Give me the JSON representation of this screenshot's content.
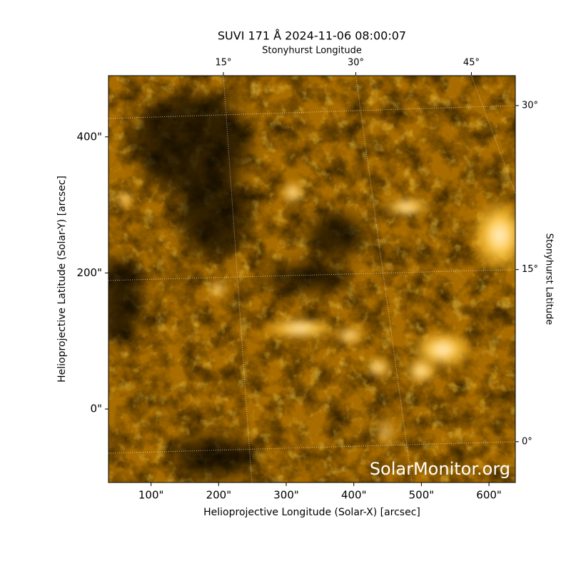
{
  "chart_data": {
    "type": "image",
    "title": "SUVI 171 Å 2024-11-06 08:00:07",
    "xlabel": "Helioprojective Longitude (Solar-X) [arcsec]",
    "ylabel": "Helioprojective Latitude (Solar-Y) [arcsec]",
    "x2label": "Stonyhurst Longitude",
    "y2label": "Stonyhurst Latitude",
    "watermark": "SolarMonitor.org",
    "xlim": [
      37,
      639
    ],
    "ylim": [
      -108,
      490
    ],
    "xticks": [
      {
        "value": 100,
        "label": "100\""
      },
      {
        "value": 200,
        "label": "200\""
      },
      {
        "value": 300,
        "label": "300\""
      },
      {
        "value": 400,
        "label": "400\""
      },
      {
        "value": 500,
        "label": "500\""
      },
      {
        "value": 600,
        "label": "600\""
      }
    ],
    "yticks": [
      {
        "value": 0,
        "label": "0\""
      },
      {
        "value": 200,
        "label": "200\""
      },
      {
        "value": 400,
        "label": "400\""
      }
    ],
    "lon_grid": [
      {
        "value": 15,
        "label": "15°",
        "x": [
          207,
          249
        ],
        "y": [
          490,
          -108
        ]
      },
      {
        "value": 30,
        "label": "30°",
        "x": [
          403,
          486
        ],
        "y": [
          490,
          -108
        ]
      },
      {
        "value": 45,
        "label": "45°",
        "x": [
          574,
          639
        ],
        "y": [
          490,
          318
        ]
      }
    ],
    "lat_grid": [
      {
        "value": 30,
        "label": "30°",
        "x": [
          37,
          639
        ],
        "y": [
          427,
          446
        ]
      },
      {
        "value": 15,
        "label": "15°",
        "x": [
          37,
          639
        ],
        "y": [
          189,
          205
        ]
      },
      {
        "value": 0,
        "label": "0°",
        "x": [
          37,
          639
        ],
        "y": [
          -65,
          -48
        ]
      }
    ]
  }
}
